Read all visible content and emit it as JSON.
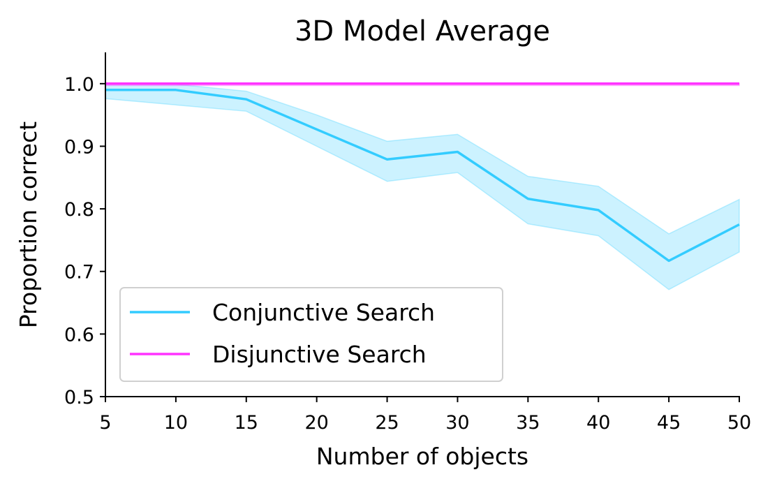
{
  "chart_data": {
    "type": "line",
    "title": "3D Model Average",
    "xlabel": "Number of objects",
    "ylabel": "Proportion correct",
    "xlim": [
      5,
      50
    ],
    "ylim": [
      0.5,
      1.05
    ],
    "x": [
      5,
      10,
      15,
      20,
      25,
      30,
      35,
      40,
      45,
      50
    ],
    "xticks": [
      5,
      10,
      15,
      20,
      25,
      30,
      35,
      40,
      45,
      50
    ],
    "xtick_labels": [
      "5",
      "10",
      "15",
      "20",
      "25",
      "30",
      "35",
      "40",
      "45",
      "50"
    ],
    "yticks": [
      0.5,
      0.6,
      0.7,
      0.8,
      0.9,
      1.0
    ],
    "ytick_labels": [
      "0.5",
      "0.6",
      "0.7",
      "0.8",
      "0.9",
      "1.0"
    ],
    "grid": false,
    "legend_position": "lower-left",
    "series": [
      {
        "name": "Conjunctive Search",
        "color": "#33ccff",
        "values": [
          0.99,
          0.99,
          0.975,
          0.927,
          0.879,
          0.891,
          0.816,
          0.798,
          0.717,
          0.775
        ],
        "band_lower": [
          0.976,
          0.966,
          0.956,
          0.9,
          0.844,
          0.858,
          0.776,
          0.757,
          0.671,
          0.731
        ],
        "band_upper": [
          1.0,
          0.999,
          0.988,
          0.95,
          0.908,
          0.919,
          0.852,
          0.836,
          0.76,
          0.815
        ]
      },
      {
        "name": "Disjunctive Search",
        "color": "#ff33ff",
        "values": [
          1.0,
          1.0,
          1.0,
          1.0,
          1.0,
          1.0,
          1.0,
          1.0,
          1.0,
          1.0
        ],
        "band_lower": [
          0.997,
          0.997,
          0.997,
          0.997,
          0.997,
          0.997,
          0.997,
          0.997,
          0.997,
          0.997
        ],
        "band_upper": [
          1.0,
          1.0,
          1.0,
          1.0,
          1.0,
          1.0,
          1.0,
          1.0,
          1.0,
          1.0
        ]
      }
    ]
  }
}
